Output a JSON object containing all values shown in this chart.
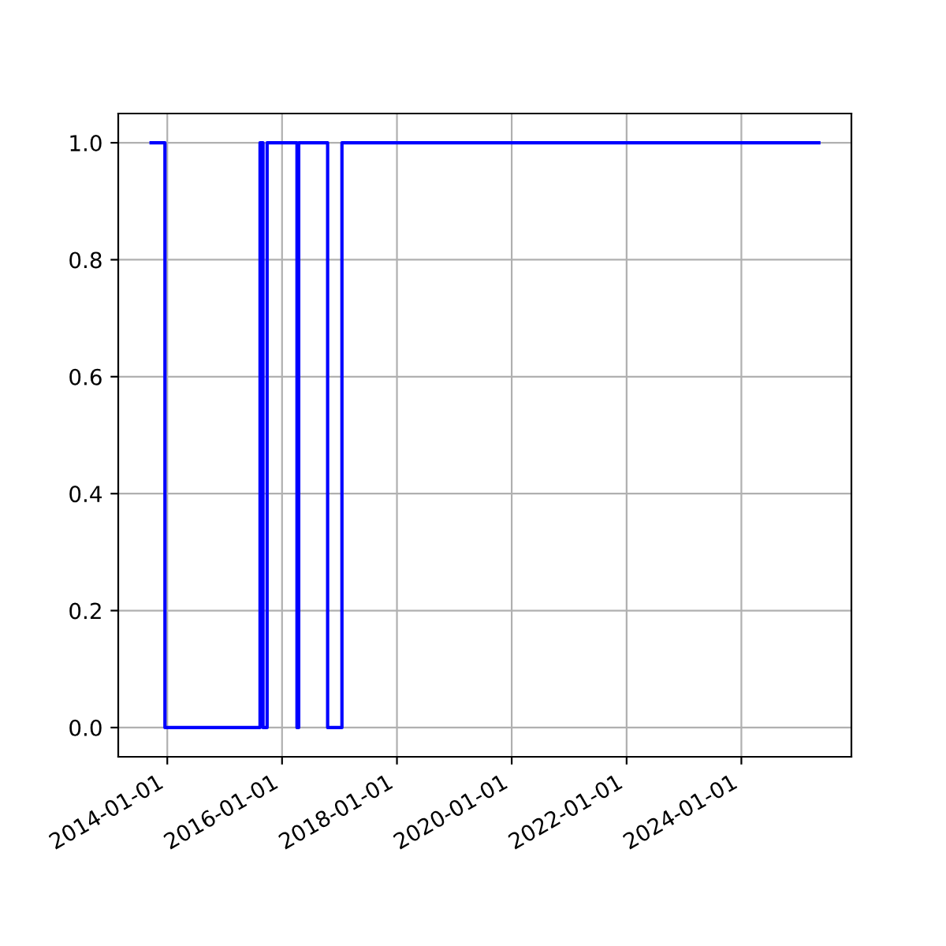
{
  "chart_data": {
    "type": "step",
    "x": [
      "2013-09-20",
      "2013-12-17",
      "2015-08-14",
      "2015-09-02",
      "2015-09-28",
      "2016-04-05",
      "2016-04-16",
      "2016-10-17",
      "2017-01-16",
      "2025-05-08"
    ],
    "series": [
      {
        "color": "#0000ff",
        "values": [
          1,
          0,
          1,
          0,
          1,
          0,
          1,
          0,
          1,
          1
        ]
      }
    ],
    "xlim": [
      "2013-02-23",
      "2025-12-01"
    ],
    "xticks": [
      {
        "value": "2014-01-01",
        "label": "2014-01-01"
      },
      {
        "value": "2016-01-01",
        "label": "2016-01-01"
      },
      {
        "value": "2018-01-01",
        "label": "2018-01-01"
      },
      {
        "value": "2020-01-01",
        "label": "2020-01-01"
      },
      {
        "value": "2022-01-01",
        "label": "2022-01-01"
      },
      {
        "value": "2024-01-01",
        "label": "2024-01-01"
      }
    ],
    "ylim": [
      -0.05,
      1.05
    ],
    "yticks": [
      {
        "value": 0,
        "label": "0.0"
      },
      {
        "value": 0.2,
        "label": "0.2"
      },
      {
        "value": 0.4,
        "label": "0.4"
      },
      {
        "value": 0.6,
        "label": "0.6"
      },
      {
        "value": 0.8,
        "label": "0.8"
      },
      {
        "value": 1,
        "label": "1.0"
      }
    ],
    "grid": true
  }
}
